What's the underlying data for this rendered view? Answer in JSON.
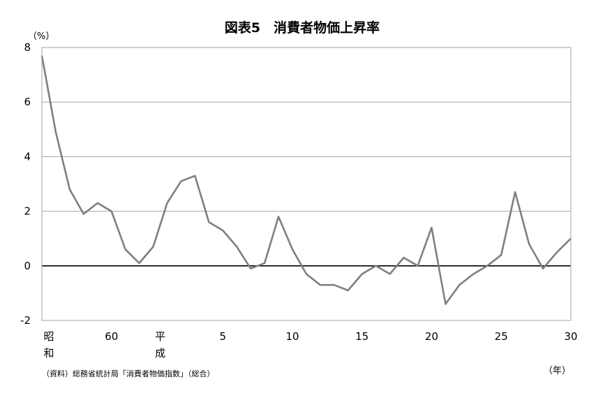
{
  "chart_data": {
    "type": "line",
    "title": "図表5　消費者物価上昇率",
    "y_unit": "（%）",
    "x_unit": "（年）",
    "source": "（資料）総務省統計局「消費者物価指数」（総合）",
    "ylim": [
      -2,
      8
    ],
    "yticks": [
      -2,
      0,
      2,
      4,
      6,
      8
    ],
    "grid": true,
    "legend": "none",
    "line_color": "#7f7f7f",
    "zero_line_color": "#000000",
    "era_labels": [
      {
        "at": 55,
        "lines": [
          "昭",
          "和"
        ]
      },
      {
        "at": 63,
        "lines": [
          "平",
          "成"
        ]
      }
    ],
    "xtick_labels": [
      {
        "at": 60,
        "label": "60"
      },
      {
        "at": 68,
        "label": "5"
      },
      {
        "at": 73,
        "label": "10"
      },
      {
        "at": 78,
        "label": "15"
      },
      {
        "at": 83,
        "label": "20"
      },
      {
        "at": 88,
        "label": "25"
      },
      {
        "at": 93,
        "label": "30"
      }
    ],
    "series": [
      {
        "x": [
          55,
          56,
          57,
          58,
          59,
          60,
          61,
          62,
          63,
          64,
          65,
          66,
          67,
          68,
          69,
          70,
          71,
          72,
          73,
          74,
          75,
          76,
          77,
          78,
          79,
          80,
          81,
          82,
          83,
          84,
          85,
          86,
          87,
          88,
          89,
          90,
          91,
          92,
          93
        ],
        "values": [
          7.7,
          4.9,
          2.8,
          1.9,
          2.3,
          2.0,
          0.6,
          0.1,
          0.7,
          2.3,
          3.1,
          3.3,
          1.6,
          1.3,
          0.7,
          -0.1,
          0.1,
          1.8,
          0.6,
          -0.3,
          -0.7,
          -0.7,
          -0.9,
          -0.3,
          0.0,
          -0.3,
          0.3,
          0.0,
          1.4,
          -1.4,
          -0.7,
          -0.3,
          0.0,
          0.4,
          2.7,
          0.8,
          -0.1,
          0.5,
          1.0
        ]
      }
    ]
  }
}
